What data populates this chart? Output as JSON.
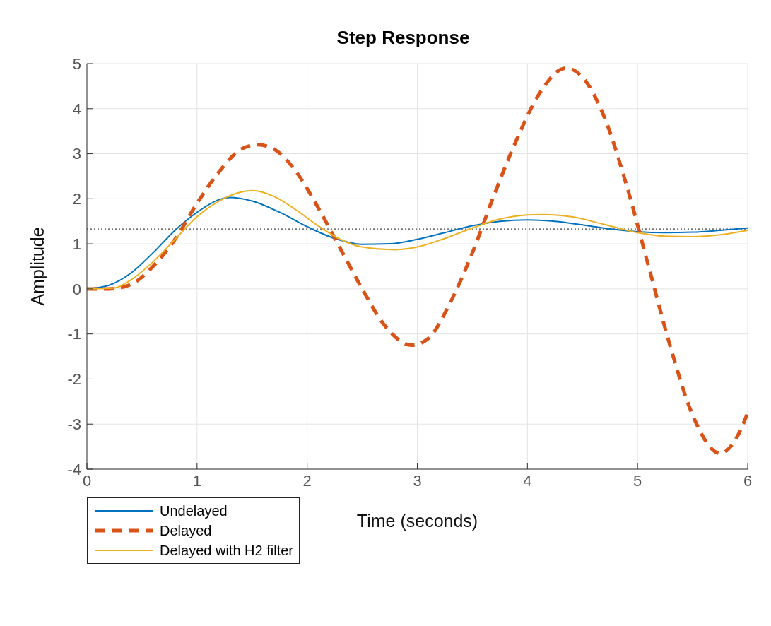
{
  "chart_data": {
    "type": "line",
    "title": "Step Response",
    "xlabel": "Time (seconds)",
    "ylabel": "Amplitude",
    "xlim": [
      0,
      6
    ],
    "xticks": [
      0,
      1,
      2,
      3,
      4,
      5,
      6
    ],
    "ylim": [
      -4,
      5
    ],
    "yticks": [
      -4,
      -3,
      -2,
      -1,
      0,
      1,
      2,
      3,
      4,
      5
    ],
    "grid": true,
    "legend": "bottom left",
    "marker": "none",
    "ref_lines": [
      {
        "axis": "y",
        "value": 1.33,
        "color": "#404040",
        "line_style": "dotted"
      }
    ],
    "series": [
      {
        "name": "Undelayed",
        "color": "#0072bd",
        "line_style": "solid",
        "x": [
          0,
          0.2,
          0.4,
          0.6,
          0.8,
          1.0,
          1.2,
          1.3,
          1.5,
          1.75,
          2.0,
          2.25,
          2.5,
          2.75,
          3.0,
          3.25,
          3.5,
          3.75,
          4.0,
          4.25,
          4.5,
          4.75,
          5.0,
          5.25,
          5.5,
          5.75,
          6.0
        ],
        "values": [
          0,
          0.08,
          0.35,
          0.8,
          1.3,
          1.7,
          1.98,
          2.03,
          1.95,
          1.7,
          1.38,
          1.12,
          0.99,
          1.0,
          1.1,
          1.25,
          1.4,
          1.5,
          1.53,
          1.5,
          1.42,
          1.33,
          1.27,
          1.25,
          1.26,
          1.3,
          1.35
        ]
      },
      {
        "name": "Delayed",
        "color": "#d95319",
        "line_style": "dashed",
        "x": [
          0,
          0.2,
          0.4,
          0.6,
          0.8,
          1.0,
          1.2,
          1.4,
          1.55,
          1.7,
          1.9,
          2.1,
          2.3,
          2.5,
          2.7,
          2.95,
          3.1,
          3.3,
          3.5,
          3.7,
          3.9,
          4.1,
          4.35,
          4.5,
          4.7,
          4.9,
          5.1,
          5.3,
          5.5,
          5.75,
          5.9,
          6.0
        ],
        "values": [
          0,
          0,
          0.1,
          0.5,
          1.1,
          1.9,
          2.6,
          3.1,
          3.2,
          3.1,
          2.6,
          1.8,
          0.9,
          0.0,
          -0.8,
          -1.25,
          -1.1,
          -0.3,
          0.8,
          2.1,
          3.3,
          4.3,
          4.9,
          4.7,
          3.8,
          2.3,
          0.5,
          -1.3,
          -2.8,
          -3.65,
          -3.3,
          -2.75
        ]
      },
      {
        "name": "Delayed with H2 filter",
        "color": "#edb120",
        "line_style": "solid",
        "x": [
          0,
          0.25,
          0.4,
          0.6,
          0.8,
          1.0,
          1.2,
          1.4,
          1.5,
          1.7,
          1.9,
          2.1,
          2.3,
          2.5,
          2.8,
          3.0,
          3.25,
          3.5,
          3.75,
          4.0,
          4.15,
          4.4,
          4.7,
          5.0,
          5.25,
          5.5,
          5.75,
          6.0
        ],
        "values": [
          0,
          0.02,
          0.2,
          0.6,
          1.1,
          1.6,
          1.95,
          2.15,
          2.18,
          2.05,
          1.75,
          1.4,
          1.1,
          0.93,
          0.87,
          0.93,
          1.12,
          1.35,
          1.55,
          1.64,
          1.65,
          1.6,
          1.43,
          1.25,
          1.17,
          1.16,
          1.2,
          1.3
        ]
      }
    ]
  }
}
